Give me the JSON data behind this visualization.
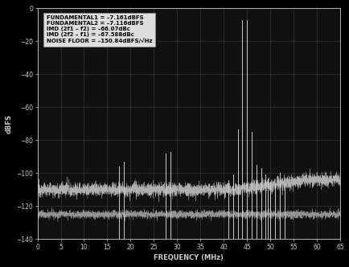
{
  "title": "",
  "xlabel": "FREQUENCY (MHz)",
  "ylabel": "dBFS",
  "xlim": [
    0,
    65
  ],
  "ylim": [
    -140,
    0
  ],
  "yticks": [
    0,
    -20,
    -40,
    -60,
    -80,
    -100,
    -120,
    -140
  ],
  "xticks": [
    0,
    5,
    10,
    15,
    20,
    25,
    30,
    35,
    40,
    45,
    50,
    55,
    60,
    65
  ],
  "bg_color": "#000000",
  "plot_bg_color": "#111111",
  "line_color": "#cccccc",
  "grid_color": "#444444",
  "text_color": "#cccccc",
  "annotation_box_facecolor": "#dddddd",
  "annotation_text_color": "#000000",
  "spectral_lines": [
    {
      "freq": 17.5,
      "db": -96
    },
    {
      "freq": 18.5,
      "db": -93
    },
    {
      "freq": 27.5,
      "db": -88
    },
    {
      "freq": 28.5,
      "db": -87
    },
    {
      "freq": 41.0,
      "db": -104
    },
    {
      "freq": 42.0,
      "db": -101
    },
    {
      "freq": 43.0,
      "db": -73.23
    },
    {
      "freq": 44.0,
      "db": -7.161
    },
    {
      "freq": 45.0,
      "db": -7.116
    },
    {
      "freq": 46.0,
      "db": -74.7
    },
    {
      "freq": 47.0,
      "db": -95
    },
    {
      "freq": 48.0,
      "db": -97
    },
    {
      "freq": 49.0,
      "db": -101
    },
    {
      "freq": 49.5,
      "db": -103
    },
    {
      "freq": 50.0,
      "db": -105
    },
    {
      "freq": 51.0,
      "db": -106
    },
    {
      "freq": 52.0,
      "db": -100
    },
    {
      "freq": 53.0,
      "db": -104
    }
  ],
  "noise_floor_level": -110,
  "noise_floor2_level": -125,
  "annotation_lines": [
    "FUNDAMENTAL1 = –7.161dBFS",
    "FUNDAMENTAL2 = –7.116dBFS",
    "IMD (2f1 – f2) = –66.07dBc",
    "IMD (2f2 – f1) = –67.588dBc",
    "NOISE FLOOR = –150.84dBFS/√Hz"
  ]
}
